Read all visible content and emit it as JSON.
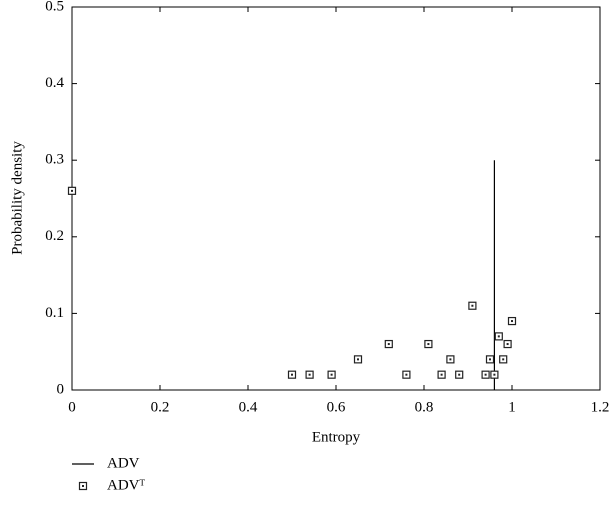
{
  "chart_data": {
    "type": "scatter",
    "xlabel": "Entropy",
    "ylabel": "Probability density",
    "xlim": [
      0,
      1.2
    ],
    "ylim": [
      0,
      0.5
    ],
    "xticks": [
      0,
      0.2,
      0.4,
      0.6,
      0.8,
      1,
      1.2
    ],
    "yticks": [
      0,
      0.1,
      0.2,
      0.3,
      0.4,
      0.5
    ],
    "grid": false,
    "legend": "bottom-left",
    "series": [
      {
        "name": "ADV",
        "type": "line",
        "color": "#000000",
        "x": [
          0.96,
          0.96
        ],
        "values": [
          0,
          0.3
        ]
      },
      {
        "name": "ADVᵀ",
        "type": "scatter",
        "color": "#222222",
        "x": [
          0,
          0.5,
          0.54,
          0.59,
          0.65,
          0.72,
          0.76,
          0.81,
          0.84,
          0.86,
          0.88,
          0.91,
          0.94,
          0.95,
          0.96,
          0.97,
          0.98,
          0.99,
          1.0
        ],
        "values": [
          0.26,
          0.02,
          0.02,
          0.02,
          0.04,
          0.06,
          0.02,
          0.06,
          0.02,
          0.04,
          0.02,
          0.11,
          0.02,
          0.04,
          0.02,
          0.07,
          0.04,
          0.06,
          0.09
        ]
      }
    ]
  }
}
